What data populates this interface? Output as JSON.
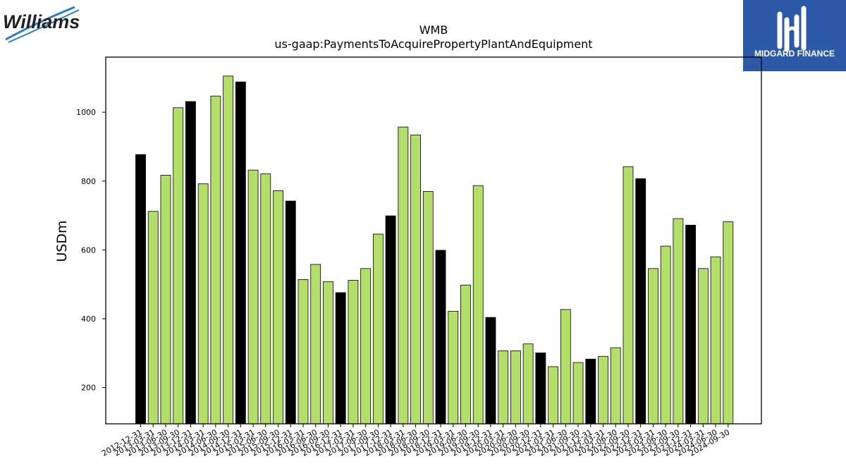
{
  "logos": {
    "left_text": "Williams",
    "right_text": "MIDGARD FINANCE"
  },
  "chart_data": {
    "type": "bar",
    "title": "WMB",
    "subtitle": "us-gaap:PaymentsToAcquirePropertyPlantAndEquipment",
    "xlabel": "",
    "ylabel": "USDm",
    "ylim": [
      95,
      1160
    ],
    "yticks": [
      200,
      400,
      600,
      800,
      1000
    ],
    "grid": false,
    "colors": {
      "q4": "#000000",
      "other": "#b3de69",
      "edge": "#000000"
    },
    "categories": [
      "2012-12-31",
      "2013-03-31",
      "2013-06-30",
      "2013-09-30",
      "2013-12-31",
      "2014-03-31",
      "2014-06-30",
      "2014-09-30",
      "2014-12-31",
      "2015-03-31",
      "2015-06-30",
      "2015-09-30",
      "2015-12-31",
      "2016-03-31",
      "2016-06-30",
      "2016-09-30",
      "2016-12-31",
      "2017-03-31",
      "2017-06-30",
      "2017-09-30",
      "2017-12-31",
      "2018-03-31",
      "2018-06-30",
      "2018-09-30",
      "2018-12-31",
      "2019-03-31",
      "2019-06-30",
      "2019-09-30",
      "2019-12-31",
      "2020-03-31",
      "2020-06-30",
      "2020-09-30",
      "2020-12-31",
      "2021-03-31",
      "2021-06-30",
      "2021-09-30",
      "2021-12-31",
      "2022-03-31",
      "2022-06-30",
      "2022-09-30",
      "2022-12-31",
      "2023-03-31",
      "2023-06-30",
      "2023-09-30",
      "2023-12-31",
      "2024-03-31",
      "2024-06-30",
      "2024-09-30"
    ],
    "values": [
      877,
      712,
      817,
      1013,
      1031,
      792,
      1047,
      1105,
      1088,
      832,
      821,
      772,
      742,
      514,
      558,
      508,
      476,
      512,
      546,
      646,
      699,
      957,
      934,
      770,
      599,
      422,
      498,
      787,
      404,
      307,
      307,
      327,
      301,
      261,
      427,
      273,
      283,
      291,
      316,
      842,
      807,
      546,
      611,
      691,
      672,
      546,
      580,
      682
    ]
  }
}
